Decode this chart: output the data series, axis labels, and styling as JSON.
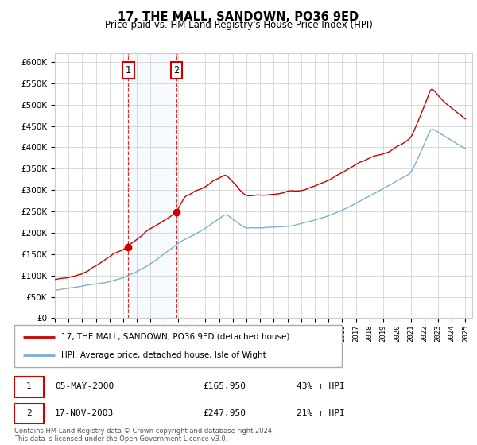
{
  "title": "17, THE MALL, SANDOWN, PO36 9ED",
  "subtitle": "Price paid vs. HM Land Registry's House Price Index (HPI)",
  "ylim": [
    0,
    620000
  ],
  "sale1_date_num": 2000.37,
  "sale1_price": 165950,
  "sale2_date_num": 2003.88,
  "sale2_price": 247950,
  "line_color_property": "#cc0000",
  "line_color_hpi": "#7ab0d4",
  "shade_color": "#ddeeff",
  "legend_property": "17, THE MALL, SANDOWN, PO36 9ED (detached house)",
  "legend_hpi": "HPI: Average price, detached house, Isle of Wight",
  "table_row1": [
    "1",
    "05-MAY-2000",
    "£165,950",
    "43% ↑ HPI"
  ],
  "table_row2": [
    "2",
    "17-NOV-2003",
    "£247,950",
    "21% ↑ HPI"
  ],
  "footer": "Contains HM Land Registry data © Crown copyright and database right 2024.\nThis data is licensed under the Open Government Licence v3.0.",
  "background_color": "#ffffff",
  "grid_color": "#cccccc"
}
